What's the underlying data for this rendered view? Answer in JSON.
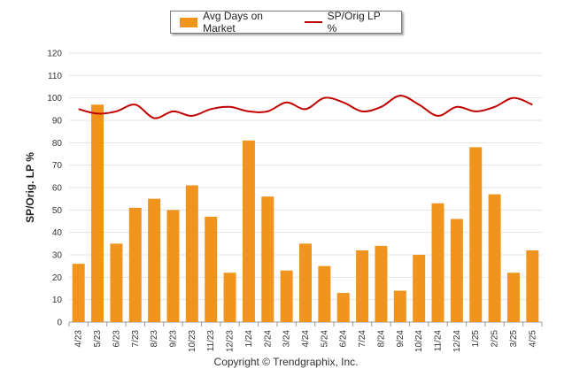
{
  "chart_data": {
    "type": "bar",
    "legend_position": "top-center",
    "grid": true,
    "ylabel": "SP/Orig. LP %",
    "ylim": [
      0,
      120
    ],
    "yticks": [
      0,
      10,
      20,
      30,
      40,
      50,
      60,
      70,
      80,
      90,
      100,
      110,
      120
    ],
    "categories": [
      "4/23",
      "5/23",
      "6/23",
      "7/23",
      "8/23",
      "9/23",
      "10/23",
      "11/23",
      "12/23",
      "1/24",
      "2/24",
      "3/24",
      "4/24",
      "5/24",
      "6/24",
      "7/24",
      "8/24",
      "9/24",
      "10/24",
      "11/24",
      "12/24",
      "1/25",
      "2/25",
      "3/25",
      "4/25"
    ],
    "series": [
      {
        "name": "Avg Days on Market",
        "type": "bar",
        "color": "#f0941d",
        "values": [
          26,
          97,
          35,
          51,
          55,
          50,
          61,
          47,
          22,
          81,
          56,
          23,
          35,
          25,
          13,
          32,
          34,
          14,
          30,
          53,
          46,
          78,
          57,
          22,
          32
        ]
      },
      {
        "name": "SP/Orig LP %",
        "type": "line",
        "color": "#c00000",
        "values": [
          95,
          93,
          94,
          97,
          91,
          94,
          92,
          95,
          96,
          94,
          94,
          98,
          95,
          100,
          98,
          94,
          96,
          101,
          97,
          92,
          96,
          94,
          96,
          100,
          97
        ]
      }
    ]
  },
  "footer": {
    "copyright": "Copyright © Trendgraphix, Inc."
  }
}
